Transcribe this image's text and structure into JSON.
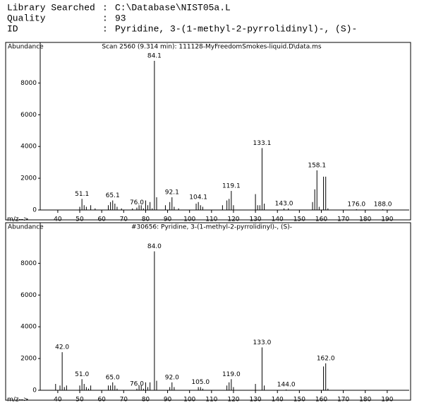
{
  "header": {
    "lines": [
      {
        "key": "Library Searched",
        "value": "C:\\Database\\NIST05a.L"
      },
      {
        "key": "Quality",
        "value": "93"
      },
      {
        "key": "ID",
        "value": "Pyridine, 3-(1-methyl-2-pyrrolidinyl)-, (S)-"
      }
    ]
  },
  "chart_data": [
    {
      "type": "stem",
      "title": "Scan 2560 (9.314 min): 111128-MyFreedomSmokes-liquid.D\\data.ms",
      "y_label": "Abundance",
      "x_label": "m/z-->",
      "color": "#000000",
      "xlim": [
        32,
        200
      ],
      "xticks": [
        40,
        50,
        60,
        70,
        80,
        90,
        100,
        110,
        120,
        130,
        140,
        150,
        160,
        170,
        180,
        190
      ],
      "ylim": [
        0,
        10200
      ],
      "yticks": [
        0,
        2000,
        4000,
        6000,
        8000
      ],
      "x": [
        50,
        51,
        52,
        53,
        55,
        57,
        63,
        64,
        65,
        66,
        67,
        69,
        74,
        76,
        77,
        78,
        79,
        80,
        81,
        82,
        83,
        84,
        85,
        89,
        91,
        92,
        93,
        95,
        103,
        104,
        105,
        106,
        115,
        117,
        118,
        119,
        120,
        130,
        131,
        132,
        133,
        134,
        143,
        145,
        156,
        157,
        158,
        159,
        161,
        162,
        163,
        176,
        188
      ],
      "values": [
        200,
        700,
        300,
        200,
        300,
        100,
        300,
        500,
        600,
        400,
        200,
        100,
        100,
        150,
        300,
        300,
        100,
        600,
        300,
        500,
        100,
        9400,
        800,
        300,
        500,
        800,
        200,
        100,
        400,
        500,
        300,
        200,
        300,
        600,
        700,
        1200,
        300,
        1000,
        300,
        300,
        3900,
        400,
        100,
        100,
        500,
        1300,
        2500,
        200,
        2100,
        2100,
        100,
        50,
        50
      ],
      "value_labels": [
        null,
        "51.1",
        null,
        null,
        null,
        null,
        null,
        null,
        "65.1",
        null,
        null,
        null,
        null,
        "76.0",
        null,
        null,
        null,
        null,
        null,
        null,
        null,
        "84.1",
        null,
        null,
        null,
        "92.1",
        null,
        null,
        null,
        "104.1",
        null,
        null,
        null,
        null,
        null,
        "119.1",
        null,
        null,
        null,
        null,
        "133.1",
        null,
        "143.0",
        null,
        null,
        null,
        "158.1",
        null,
        null,
        null,
        null,
        "176.0",
        "188.0"
      ]
    },
    {
      "type": "stem",
      "title": "#30656: Pyridine, 3-(1-methyl-2-pyrrolidinyl)-, (S)-",
      "y_label": "Abundance",
      "x_label": "m/z-->",
      "color": "#000000",
      "xlim": [
        32,
        200
      ],
      "xticks": [
        40,
        50,
        60,
        70,
        80,
        90,
        100,
        110,
        120,
        130,
        140,
        150,
        160,
        170,
        180,
        190
      ],
      "ylim": [
        0,
        10200
      ],
      "yticks": [
        0,
        2000,
        4000,
        6000,
        8000
      ],
      "x": [
        39,
        41,
        42,
        43,
        44,
        50,
        51,
        52,
        53,
        54,
        55,
        63,
        64,
        65,
        66,
        67,
        76,
        77,
        78,
        79,
        80,
        81,
        82,
        84,
        85,
        91,
        92,
        93,
        104,
        105,
        106,
        117,
        118,
        119,
        120,
        130,
        133,
        134,
        144,
        161,
        162,
        163
      ],
      "values": [
        400,
        300,
        2400,
        200,
        300,
        300,
        700,
        400,
        200,
        100,
        300,
        300,
        300,
        500,
        300,
        100,
        100,
        300,
        300,
        100,
        500,
        200,
        500,
        8750,
        600,
        200,
        500,
        200,
        200,
        200,
        100,
        300,
        500,
        700,
        200,
        400,
        2700,
        300,
        50,
        1500,
        1700,
        100
      ],
      "value_labels": [
        null,
        null,
        "42.0",
        null,
        null,
        null,
        "51.0",
        null,
        null,
        null,
        null,
        null,
        null,
        "65.0",
        null,
        null,
        "76.0",
        null,
        null,
        null,
        null,
        null,
        null,
        "84.0",
        null,
        null,
        "92.0",
        null,
        null,
        "105.0",
        null,
        null,
        null,
        "119.0",
        null,
        null,
        "133.0",
        null,
        "144.0",
        null,
        "162.0",
        null
      ]
    }
  ]
}
